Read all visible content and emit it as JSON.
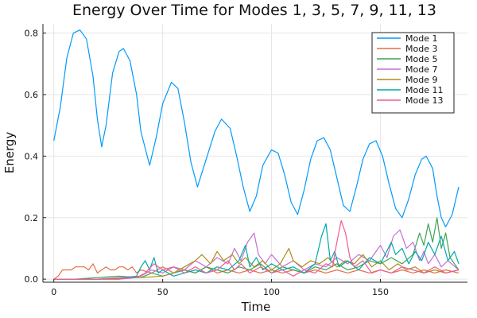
{
  "chart_data": {
    "type": "line",
    "title": "Energy Over Time for Modes 1, 3, 5, 7, 9, 11, 13",
    "xlabel": "Time",
    "ylabel": "Energy",
    "xlim": [
      -5,
      190
    ],
    "ylim": [
      -0.01,
      0.83
    ],
    "xticks": [
      0,
      50,
      100,
      150
    ],
    "yticks": [
      0.0,
      0.2,
      0.4,
      0.6,
      0.8
    ],
    "xtick_labels": [
      "0",
      "50",
      "100",
      "150"
    ],
    "ytick_labels": [
      "0.0",
      "0.2",
      "0.4",
      "0.6",
      "0.8"
    ],
    "grid": true,
    "legend_position": "top-right",
    "series": [
      {
        "name": "Mode 1",
        "color": "#009AFA",
        "points": [
          [
            0,
            0.45
          ],
          [
            3,
            0.56
          ],
          [
            6,
            0.72
          ],
          [
            9,
            0.8
          ],
          [
            12,
            0.81
          ],
          [
            15,
            0.78
          ],
          [
            18,
            0.66
          ],
          [
            20,
            0.52
          ],
          [
            22,
            0.43
          ],
          [
            24,
            0.5
          ],
          [
            27,
            0.67
          ],
          [
            30,
            0.74
          ],
          [
            32,
            0.75
          ],
          [
            35,
            0.71
          ],
          [
            38,
            0.6
          ],
          [
            40,
            0.48
          ],
          [
            44,
            0.37
          ],
          [
            47,
            0.46
          ],
          [
            50,
            0.57
          ],
          [
            54,
            0.64
          ],
          [
            57,
            0.62
          ],
          [
            60,
            0.51
          ],
          [
            63,
            0.38
          ],
          [
            66,
            0.3
          ],
          [
            70,
            0.39
          ],
          [
            74,
            0.48
          ],
          [
            77,
            0.52
          ],
          [
            81,
            0.49
          ],
          [
            84,
            0.4
          ],
          [
            87,
            0.3
          ],
          [
            90,
            0.22
          ],
          [
            93,
            0.27
          ],
          [
            96,
            0.37
          ],
          [
            100,
            0.42
          ],
          [
            103,
            0.41
          ],
          [
            106,
            0.34
          ],
          [
            109,
            0.25
          ],
          [
            112,
            0.21
          ],
          [
            115,
            0.29
          ],
          [
            118,
            0.39
          ],
          [
            121,
            0.45
          ],
          [
            124,
            0.46
          ],
          [
            127,
            0.42
          ],
          [
            130,
            0.33
          ],
          [
            133,
            0.24
          ],
          [
            136,
            0.22
          ],
          [
            139,
            0.3
          ],
          [
            142,
            0.39
          ],
          [
            145,
            0.44
          ],
          [
            148,
            0.45
          ],
          [
            151,
            0.4
          ],
          [
            154,
            0.31
          ],
          [
            157,
            0.23
          ],
          [
            160,
            0.2
          ],
          [
            163,
            0.26
          ],
          [
            166,
            0.34
          ],
          [
            169,
            0.39
          ],
          [
            171,
            0.4
          ],
          [
            174,
            0.36
          ],
          [
            176,
            0.27
          ],
          [
            178,
            0.2
          ],
          [
            180,
            0.17
          ],
          [
            183,
            0.21
          ],
          [
            186,
            0.3
          ]
        ]
      },
      {
        "name": "Mode 3",
        "color": "#E36F47",
        "points": [
          [
            0,
            0.0
          ],
          [
            2,
            0.01
          ],
          [
            4,
            0.03
          ],
          [
            6,
            0.03
          ],
          [
            8,
            0.03
          ],
          [
            10,
            0.04
          ],
          [
            12,
            0.04
          ],
          [
            14,
            0.04
          ],
          [
            16,
            0.03
          ],
          [
            18,
            0.05
          ],
          [
            20,
            0.02
          ],
          [
            22,
            0.03
          ],
          [
            24,
            0.04
          ],
          [
            26,
            0.03
          ],
          [
            28,
            0.03
          ],
          [
            30,
            0.04
          ],
          [
            32,
            0.04
          ],
          [
            34,
            0.03
          ],
          [
            36,
            0.04
          ],
          [
            38,
            0.02
          ],
          [
            40,
            0.03
          ],
          [
            45,
            0.02
          ],
          [
            50,
            0.04
          ],
          [
            55,
            0.02
          ],
          [
            60,
            0.03
          ],
          [
            65,
            0.02
          ],
          [
            70,
            0.04
          ],
          [
            75,
            0.02
          ],
          [
            80,
            0.03
          ],
          [
            85,
            0.02
          ],
          [
            90,
            0.03
          ],
          [
            95,
            0.02
          ],
          [
            100,
            0.03
          ],
          [
            105,
            0.02
          ],
          [
            110,
            0.03
          ],
          [
            115,
            0.02
          ],
          [
            120,
            0.03
          ],
          [
            125,
            0.02
          ],
          [
            130,
            0.03
          ],
          [
            135,
            0.02
          ],
          [
            140,
            0.03
          ],
          [
            145,
            0.02
          ],
          [
            150,
            0.03
          ],
          [
            155,
            0.02
          ],
          [
            160,
            0.03
          ],
          [
            165,
            0.02
          ],
          [
            170,
            0.03
          ],
          [
            175,
            0.02
          ],
          [
            180,
            0.03
          ],
          [
            186,
            0.02
          ]
        ]
      },
      {
        "name": "Mode 5",
        "color": "#3EA44E",
        "points": [
          [
            0,
            0.0
          ],
          [
            10,
            0.0
          ],
          [
            20,
            0.005
          ],
          [
            30,
            0.01
          ],
          [
            40,
            0.005
          ],
          [
            45,
            0.02
          ],
          [
            50,
            0.01
          ],
          [
            55,
            0.02
          ],
          [
            60,
            0.03
          ],
          [
            65,
            0.02
          ],
          [
            70,
            0.04
          ],
          [
            75,
            0.03
          ],
          [
            80,
            0.02
          ],
          [
            85,
            0.04
          ],
          [
            90,
            0.03
          ],
          [
            95,
            0.05
          ],
          [
            100,
            0.02
          ],
          [
            105,
            0.04
          ],
          [
            110,
            0.03
          ],
          [
            115,
            0.02
          ],
          [
            120,
            0.04
          ],
          [
            125,
            0.03
          ],
          [
            130,
            0.05
          ],
          [
            135,
            0.03
          ],
          [
            140,
            0.04
          ],
          [
            145,
            0.06
          ],
          [
            150,
            0.05
          ],
          [
            155,
            0.07
          ],
          [
            160,
            0.05
          ],
          [
            165,
            0.08
          ],
          [
            168,
            0.15
          ],
          [
            170,
            0.11
          ],
          [
            172,
            0.18
          ],
          [
            174,
            0.12
          ],
          [
            176,
            0.2
          ],
          [
            178,
            0.1
          ],
          [
            180,
            0.15
          ],
          [
            182,
            0.07
          ],
          [
            184,
            0.05
          ],
          [
            186,
            0.03
          ]
        ]
      },
      {
        "name": "Mode 7",
        "color": "#C271D2",
        "points": [
          [
            0,
            0.0
          ],
          [
            20,
            0.0
          ],
          [
            40,
            0.01
          ],
          [
            45,
            0.03
          ],
          [
            50,
            0.02
          ],
          [
            55,
            0.04
          ],
          [
            60,
            0.03
          ],
          [
            65,
            0.06
          ],
          [
            70,
            0.04
          ],
          [
            75,
            0.07
          ],
          [
            80,
            0.05
          ],
          [
            83,
            0.1
          ],
          [
            86,
            0.06
          ],
          [
            89,
            0.12
          ],
          [
            92,
            0.15
          ],
          [
            94,
            0.08
          ],
          [
            97,
            0.05
          ],
          [
            100,
            0.08
          ],
          [
            105,
            0.04
          ],
          [
            110,
            0.06
          ],
          [
            115,
            0.03
          ],
          [
            120,
            0.05
          ],
          [
            125,
            0.04
          ],
          [
            130,
            0.07
          ],
          [
            135,
            0.05
          ],
          [
            140,
            0.08
          ],
          [
            145,
            0.06
          ],
          [
            150,
            0.11
          ],
          [
            153,
            0.07
          ],
          [
            156,
            0.14
          ],
          [
            159,
            0.16
          ],
          [
            162,
            0.1
          ],
          [
            165,
            0.12
          ],
          [
            168,
            0.06
          ],
          [
            170,
            0.09
          ],
          [
            172,
            0.05
          ],
          [
            175,
            0.08
          ],
          [
            178,
            0.04
          ],
          [
            181,
            0.06
          ],
          [
            186,
            0.03
          ]
        ]
      },
      {
        "name": "Mode 9",
        "color": "#AC8E18",
        "points": [
          [
            0,
            0.0
          ],
          [
            20,
            0.0
          ],
          [
            40,
            0.005
          ],
          [
            50,
            0.01
          ],
          [
            55,
            0.02
          ],
          [
            60,
            0.04
          ],
          [
            65,
            0.06
          ],
          [
            68,
            0.08
          ],
          [
            72,
            0.05
          ],
          [
            75,
            0.09
          ],
          [
            78,
            0.06
          ],
          [
            82,
            0.08
          ],
          [
            85,
            0.05
          ],
          [
            88,
            0.07
          ],
          [
            92,
            0.04
          ],
          [
            96,
            0.06
          ],
          [
            100,
            0.03
          ],
          [
            104,
            0.05
          ],
          [
            108,
            0.1
          ],
          [
            110,
            0.06
          ],
          [
            114,
            0.04
          ],
          [
            118,
            0.06
          ],
          [
            122,
            0.05
          ],
          [
            126,
            0.07
          ],
          [
            130,
            0.04
          ],
          [
            134,
            0.06
          ],
          [
            138,
            0.05
          ],
          [
            142,
            0.08
          ],
          [
            146,
            0.04
          ],
          [
            150,
            0.06
          ],
          [
            154,
            0.03
          ],
          [
            158,
            0.05
          ],
          [
            162,
            0.03
          ],
          [
            166,
            0.04
          ],
          [
            170,
            0.02
          ],
          [
            175,
            0.03
          ],
          [
            180,
            0.02
          ],
          [
            186,
            0.03
          ]
        ]
      },
      {
        "name": "Mode 11",
        "color": "#00A9AD",
        "points": [
          [
            0,
            0.0
          ],
          [
            30,
            0.0
          ],
          [
            38,
            0.01
          ],
          [
            40,
            0.04
          ],
          [
            42,
            0.06
          ],
          [
            44,
            0.03
          ],
          [
            46,
            0.07
          ],
          [
            48,
            0.02
          ],
          [
            50,
            0.03
          ],
          [
            55,
            0.01
          ],
          [
            60,
            0.02
          ],
          [
            65,
            0.03
          ],
          [
            70,
            0.02
          ],
          [
            75,
            0.04
          ],
          [
            80,
            0.03
          ],
          [
            85,
            0.06
          ],
          [
            88,
            0.11
          ],
          [
            90,
            0.04
          ],
          [
            93,
            0.07
          ],
          [
            96,
            0.03
          ],
          [
            100,
            0.05
          ],
          [
            105,
            0.03
          ],
          [
            110,
            0.04
          ],
          [
            115,
            0.02
          ],
          [
            120,
            0.05
          ],
          [
            123,
            0.14
          ],
          [
            125,
            0.18
          ],
          [
            127,
            0.06
          ],
          [
            129,
            0.09
          ],
          [
            131,
            0.04
          ],
          [
            135,
            0.06
          ],
          [
            140,
            0.03
          ],
          [
            145,
            0.07
          ],
          [
            150,
            0.05
          ],
          [
            155,
            0.12
          ],
          [
            157,
            0.08
          ],
          [
            160,
            0.1
          ],
          [
            163,
            0.05
          ],
          [
            166,
            0.09
          ],
          [
            169,
            0.06
          ],
          [
            172,
            0.12
          ],
          [
            175,
            0.08
          ],
          [
            178,
            0.14
          ],
          [
            181,
            0.06
          ],
          [
            184,
            0.09
          ],
          [
            186,
            0.05
          ]
        ]
      },
      {
        "name": "Mode 13",
        "color": "#ED5D92",
        "points": [
          [
            0,
            0.0
          ],
          [
            30,
            0.0
          ],
          [
            38,
            0.005
          ],
          [
            42,
            0.02
          ],
          [
            46,
            0.05
          ],
          [
            50,
            0.03
          ],
          [
            55,
            0.04
          ],
          [
            60,
            0.02
          ],
          [
            65,
            0.04
          ],
          [
            70,
            0.02
          ],
          [
            75,
            0.03
          ],
          [
            80,
            0.06
          ],
          [
            83,
            0.03
          ],
          [
            86,
            0.05
          ],
          [
            90,
            0.02
          ],
          [
            95,
            0.04
          ],
          [
            100,
            0.02
          ],
          [
            105,
            0.03
          ],
          [
            110,
            0.01
          ],
          [
            115,
            0.03
          ],
          [
            120,
            0.02
          ],
          [
            125,
            0.05
          ],
          [
            128,
            0.04
          ],
          [
            130,
            0.12
          ],
          [
            132,
            0.19
          ],
          [
            134,
            0.15
          ],
          [
            136,
            0.07
          ],
          [
            138,
            0.04
          ],
          [
            142,
            0.06
          ],
          [
            146,
            0.02
          ],
          [
            150,
            0.03
          ],
          [
            155,
            0.02
          ],
          [
            160,
            0.04
          ],
          [
            165,
            0.03
          ],
          [
            170,
            0.02
          ],
          [
            175,
            0.04
          ],
          [
            180,
            0.02
          ],
          [
            186,
            0.03
          ]
        ]
      }
    ]
  }
}
